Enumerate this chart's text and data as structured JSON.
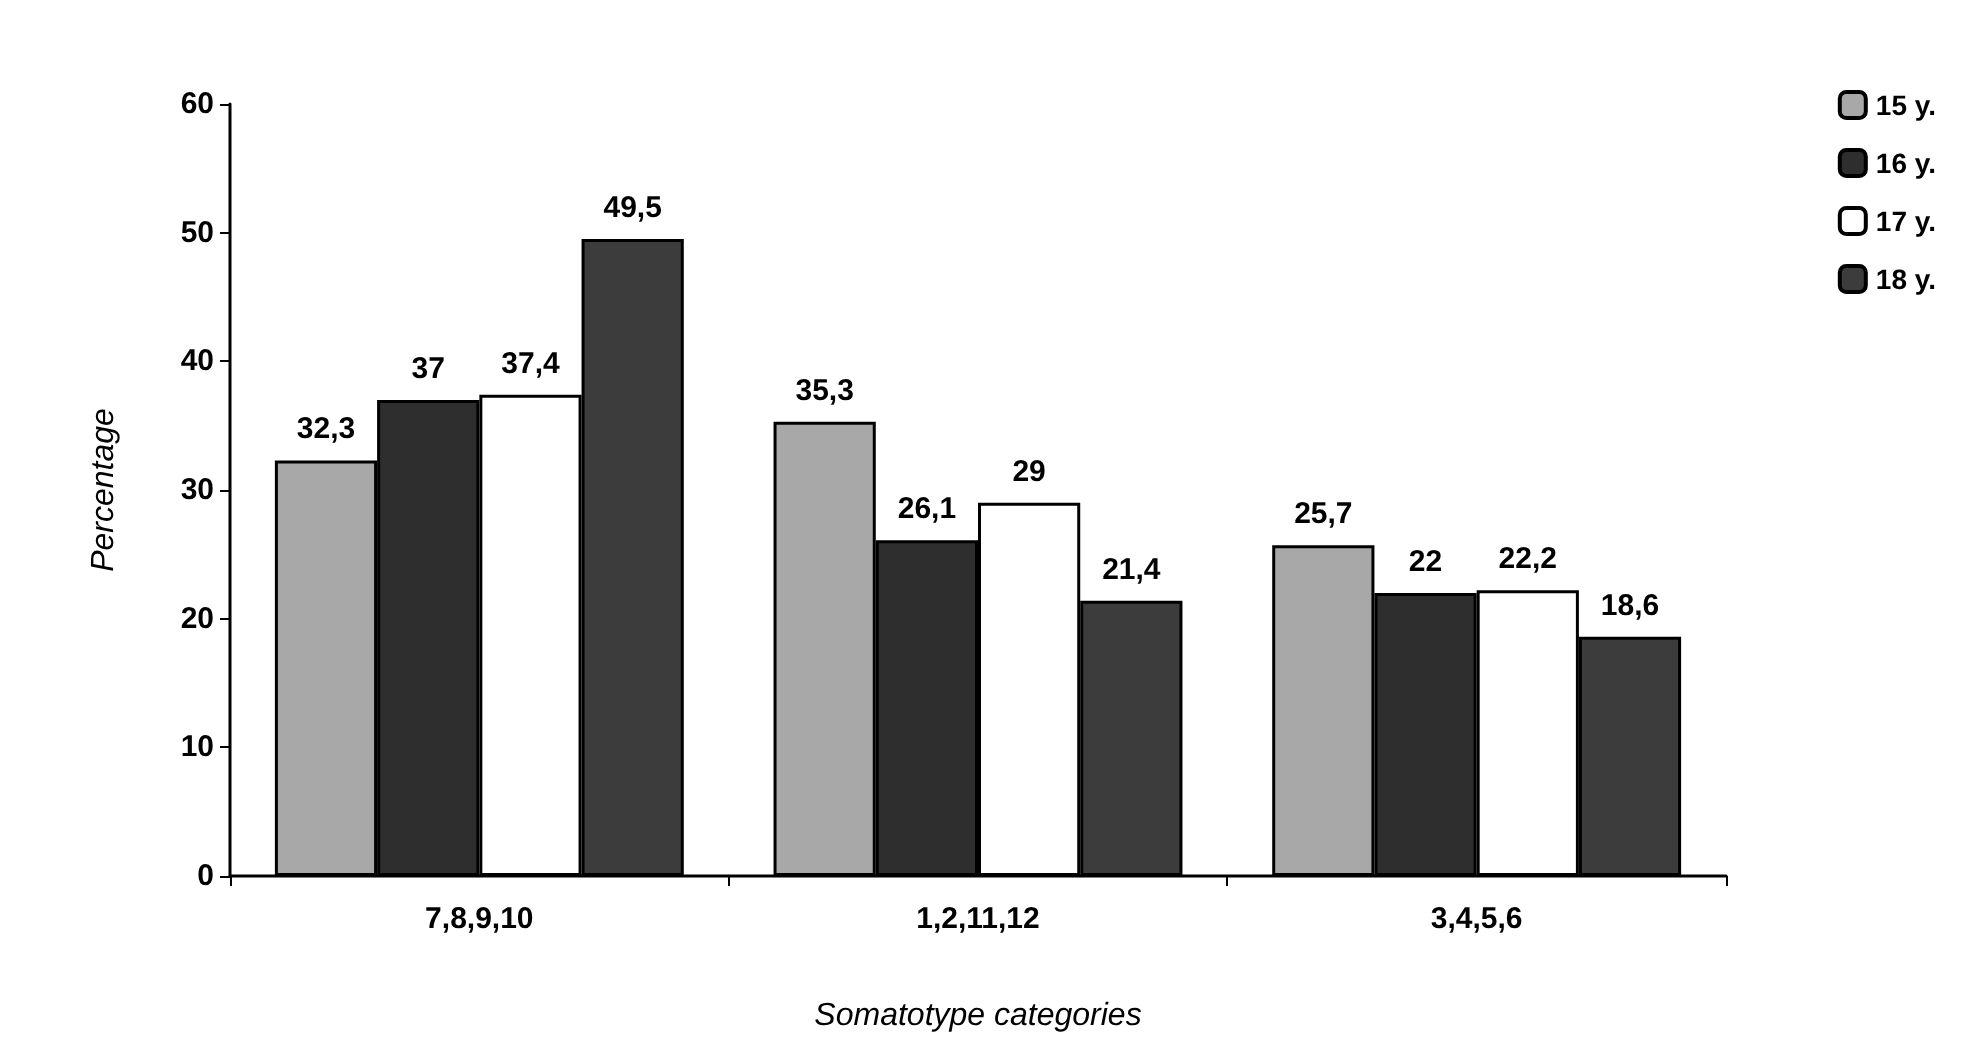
{
  "chart_data": {
    "type": "bar",
    "xlabel": "Somatotype categories",
    "ylabel": "Percentage",
    "categories": [
      "7,8,9,10",
      "1,2,11,12",
      "3,4,5,6"
    ],
    "series": [
      {
        "name": "15 y.",
        "color": "#a8a8a8",
        "values": [
          32.3,
          35.3,
          25.7
        ],
        "value_labels": [
          "32,3",
          "35,3",
          "25,7"
        ]
      },
      {
        "name": "16 y.",
        "color": "#2e2e2e",
        "values": [
          37,
          26.1,
          22
        ],
        "value_labels": [
          "37",
          "26,1",
          "22"
        ]
      },
      {
        "name": "17 y.",
        "color": "#ffffff",
        "values": [
          37.4,
          29,
          22.2
        ],
        "value_labels": [
          "37,4",
          "29",
          "22,2"
        ]
      },
      {
        "name": "18 y.",
        "color": "#3c3c3c",
        "values": [
          49.5,
          21.4,
          18.6
        ],
        "value_labels": [
          "49,5",
          "21,4",
          "18,6"
        ]
      }
    ],
    "ylim": [
      0,
      60
    ],
    "yticks": [
      0,
      10,
      20,
      30,
      40,
      50,
      60
    ],
    "grid": false,
    "legend": "top right"
  }
}
